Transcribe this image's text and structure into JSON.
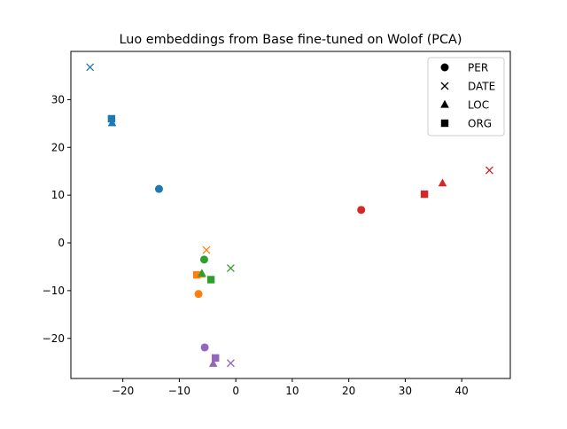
{
  "chart_data": {
    "type": "scatter",
    "title": "Luo embeddings from Base fine-tuned on Wolof (PCA)",
    "xlabel": "",
    "ylabel": "",
    "xlim": [
      -29.2,
      48.6
    ],
    "ylim": [
      -28.4,
      40.1
    ],
    "xticks": [
      -20,
      -10,
      0,
      10,
      20,
      30,
      40
    ],
    "yticks": [
      -20,
      -10,
      0,
      10,
      20,
      30
    ],
    "grid": false,
    "legend": {
      "placement": "top-right",
      "entries": [
        {
          "label": "PER",
          "marker": "circle"
        },
        {
          "label": "DATE",
          "marker": "x"
        },
        {
          "label": "LOC",
          "marker": "triangle"
        },
        {
          "label": "ORG",
          "marker": "square"
        }
      ]
    },
    "groups": [
      {
        "color": "#1f77b4",
        "points": [
          {
            "entity": "PER",
            "x": -13.6,
            "y": 11.3
          },
          {
            "entity": "DATE",
            "x": -25.8,
            "y": 36.8
          },
          {
            "entity": "LOC",
            "x": -21.9,
            "y": 25.1
          },
          {
            "entity": "ORG",
            "x": -22.0,
            "y": 26.0
          }
        ]
      },
      {
        "color": "#ff7f0e",
        "points": [
          {
            "entity": "PER",
            "x": -6.6,
            "y": -10.7
          },
          {
            "entity": "DATE",
            "x": -5.2,
            "y": -1.5
          },
          {
            "entity": "LOC",
            "x": -6.1,
            "y": -6.6
          },
          {
            "entity": "ORG",
            "x": -6.9,
            "y": -6.7
          }
        ]
      },
      {
        "color": "#2ca02c",
        "points": [
          {
            "entity": "PER",
            "x": -5.6,
            "y": -3.5
          },
          {
            "entity": "DATE",
            "x": -0.9,
            "y": -5.3
          },
          {
            "entity": "LOC",
            "x": -6.0,
            "y": -6.4
          },
          {
            "entity": "ORG",
            "x": -4.4,
            "y": -7.7
          }
        ]
      },
      {
        "color": "#d62728",
        "points": [
          {
            "entity": "PER",
            "x": 22.2,
            "y": 6.9
          },
          {
            "entity": "DATE",
            "x": 44.9,
            "y": 15.2
          },
          {
            "entity": "LOC",
            "x": 36.6,
            "y": 12.5
          },
          {
            "entity": "ORG",
            "x": 33.4,
            "y": 10.2
          }
        ]
      },
      {
        "color": "#9467bd",
        "points": [
          {
            "entity": "PER",
            "x": -5.5,
            "y": -21.9
          },
          {
            "entity": "DATE",
            "x": -0.9,
            "y": -25.2
          },
          {
            "entity": "LOC",
            "x": -4.0,
            "y": -25.3
          },
          {
            "entity": "ORG",
            "x": -3.6,
            "y": -24.1
          }
        ]
      }
    ]
  }
}
